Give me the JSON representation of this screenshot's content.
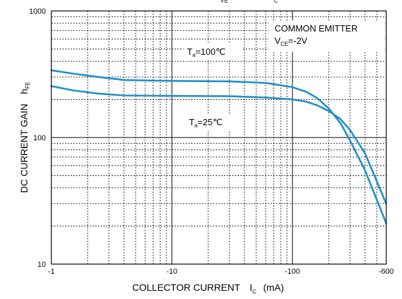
{
  "chart_data": {
    "type": "line",
    "title_fragment": {
      "left": "FE",
      "right": "C"
    },
    "xaxis": {
      "label_text": "COLLECTOR CURRENT",
      "label_symbol": "I",
      "label_sub": "C",
      "label_unit": "(mA)",
      "scale": "log",
      "range": [
        -1,
        -600
      ],
      "ticks": [
        {
          "value": -1,
          "label": "-1"
        },
        {
          "value": -10,
          "label": "-10"
        },
        {
          "value": -100,
          "label": "-100"
        },
        {
          "value": -600,
          "label": "-600"
        }
      ]
    },
    "yaxis": {
      "label_text": "DC CURRENT GAIN",
      "label_symbol": "h",
      "label_sub": "FE",
      "scale": "log",
      "range": [
        10,
        1000
      ],
      "ticks": [
        {
          "value": 10,
          "label": "10"
        },
        {
          "value": 100,
          "label": "100"
        },
        {
          "value": 1000,
          "label": "1000"
        }
      ]
    },
    "annotation": {
      "line1": "COMMON EMITTER",
      "line2_symbol": "V",
      "line2_sub": "CE",
      "line2_value": "=-2V"
    },
    "series_labels": [
      {
        "symbol": "T",
        "sub": "a",
        "value": "=100℃"
      },
      {
        "symbol": "T",
        "sub": "a",
        "value": "=25℃"
      }
    ],
    "series": [
      {
        "x": [
          -1,
          -1.5,
          -2.5,
          -4,
          -10,
          -30,
          -60,
          -100,
          -130,
          -160,
          -200,
          -250,
          -300,
          -400,
          -600
        ],
        "y": [
          340,
          320,
          300,
          285,
          280,
          278,
          270,
          250,
          230,
          205,
          170,
          130,
          95,
          55,
          21
        ]
      },
      {
        "x": [
          -1,
          -1.5,
          -2.5,
          -4,
          -10,
          -30,
          -60,
          -100,
          -130,
          -160,
          -200,
          -250,
          -300,
          -400,
          -600
        ],
        "y": [
          255,
          236,
          222,
          215,
          213,
          212,
          207,
          200,
          192,
          180,
          162,
          140,
          115,
          75,
          30
        ]
      }
    ],
    "grid": true,
    "colors": {
      "series": "#1e8fc8",
      "grid": "#000000"
    }
  }
}
